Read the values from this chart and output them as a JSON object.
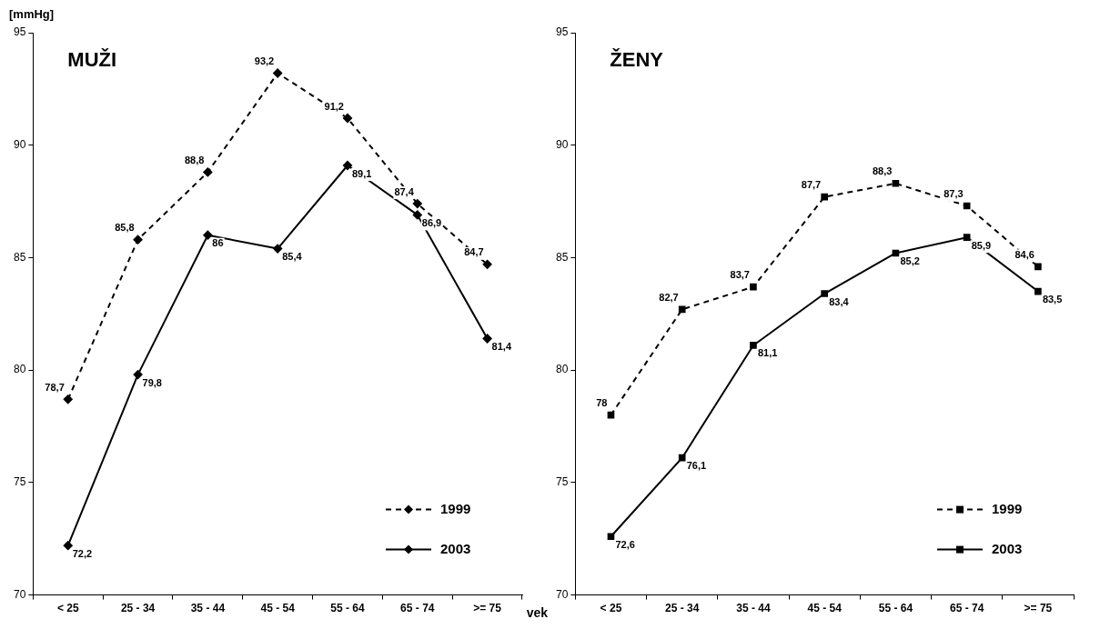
{
  "chart_data": [
    {
      "type": "line",
      "title": "MUŽI",
      "ylabel": "[mmHg]",
      "xlabel": "vek",
      "categories": [
        "< 25",
        "25 - 34",
        "35 - 44",
        "45 - 54",
        "55 - 64",
        "65 - 74",
        ">= 75"
      ],
      "ylim": [
        70,
        95
      ],
      "yticks": [
        70,
        75,
        80,
        85,
        90,
        95
      ],
      "grid": false,
      "legend": "bottom right",
      "marker": "diamond",
      "series": [
        {
          "name": "1999",
          "color": "#000000",
          "line_style": "dashed",
          "values": [
            78.7,
            85.8,
            88.8,
            93.2,
            91.2,
            87.4,
            84.7
          ],
          "value_labels": [
            "78,7",
            "85,8",
            "88,8",
            "93,2",
            "91,2",
            "87,4",
            "84,7"
          ]
        },
        {
          "name": "2003",
          "color": "#000000",
          "line_style": "solid",
          "values": [
            72.2,
            79.8,
            86,
            85.4,
            89.1,
            86.9,
            81.4
          ],
          "value_labels": [
            "72,2",
            "79,8",
            "86",
            "85,4",
            "89,1",
            "86,9",
            "81,4"
          ]
        }
      ]
    },
    {
      "type": "line",
      "title": "ŽENY",
      "categories": [
        "< 25",
        "25 - 34",
        "35 - 44",
        "45 - 54",
        "55 - 64",
        "65 - 74",
        ">= 75"
      ],
      "ylim": [
        70,
        95
      ],
      "yticks": [
        70,
        75,
        80,
        85,
        90,
        95
      ],
      "grid": false,
      "legend": "bottom right",
      "marker": "square",
      "series": [
        {
          "name": "1999",
          "color": "#000000",
          "line_style": "dashed",
          "values": [
            78,
            82.7,
            83.7,
            87.7,
            88.3,
            87.3,
            84.6
          ],
          "value_labels": [
            "78",
            "82,7",
            "83,7",
            "87,7",
            "88,3",
            "87,3",
            "84,6"
          ]
        },
        {
          "name": "2003",
          "color": "#000000",
          "line_style": "solid",
          "values": [
            72.6,
            76.1,
            81.1,
            83.4,
            85.2,
            85.9,
            83.5
          ],
          "value_labels": [
            "72,6",
            "76,1",
            "81,1",
            "83,4",
            "85,2",
            "85,9",
            "83,5"
          ]
        }
      ]
    }
  ]
}
